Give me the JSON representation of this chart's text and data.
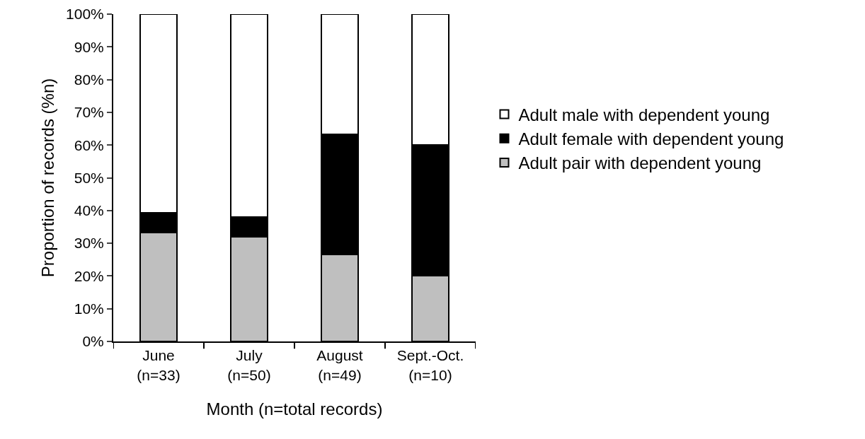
{
  "chart_data": {
    "type": "bar",
    "stacked": true,
    "xlabel": "Month (n=total records)",
    "ylabel": "Proportion of records (%n)",
    "categories": [
      "June\n(n=33)",
      "July\n(n=50)",
      "August\n(n=49)",
      "Sept.-Oct.\n(n=10)"
    ],
    "series": [
      {
        "name": "Adult pair with dependent young",
        "color": "#bfbfbf",
        "values": [
          33.3,
          32,
          26.5,
          20
        ]
      },
      {
        "name": "Adult female with dependent young",
        "color": "#000000",
        "values": [
          6.1,
          6,
          36.8,
          40
        ]
      },
      {
        "name": "Adult male with dependent young",
        "color": "#ffffff",
        "values": [
          60.6,
          62,
          36.7,
          40
        ]
      }
    ],
    "ylim": [
      0,
      100
    ],
    "yticks": [
      {
        "value": 0,
        "label": "0%"
      },
      {
        "value": 10,
        "label": "10%"
      },
      {
        "value": 20,
        "label": "20%"
      },
      {
        "value": 30,
        "label": "30%"
      },
      {
        "value": 40,
        "label": "40%"
      },
      {
        "value": 50,
        "label": "50%"
      },
      {
        "value": 60,
        "label": "60%"
      },
      {
        "value": 70,
        "label": "70%"
      },
      {
        "value": 80,
        "label": "80%"
      },
      {
        "value": 90,
        "label": "90%"
      },
      {
        "value": 100,
        "label": "100%"
      }
    ],
    "grid": false,
    "legend": "right"
  }
}
